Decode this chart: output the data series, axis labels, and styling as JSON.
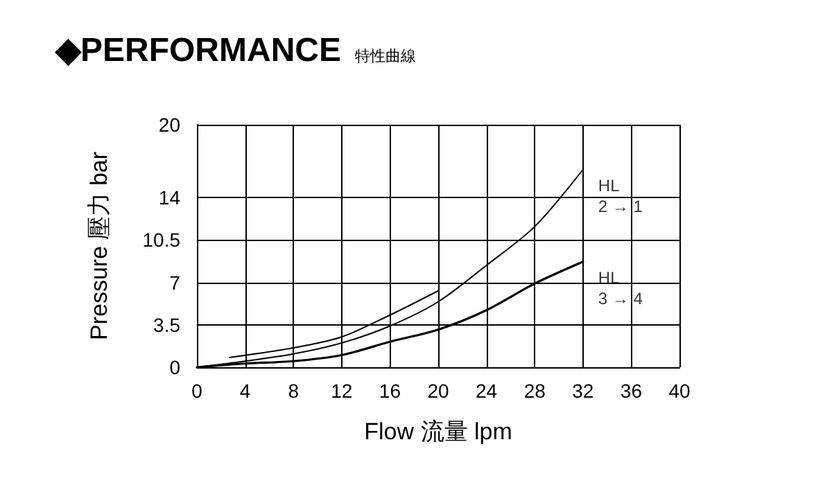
{
  "chart_data": {
    "type": "line",
    "title": "◆PERFORMANCE",
    "subtitle": "特性曲線",
    "xlabel": "Flow 流量 lpm",
    "ylabel": "Pressure 壓力 bar",
    "xlim": [
      0,
      40
    ],
    "xticks": [
      0,
      4,
      8,
      12,
      16,
      20,
      24,
      28,
      32,
      36,
      40
    ],
    "ylim": [
      0,
      20
    ],
    "yticks": [
      0,
      3.5,
      7,
      10.5,
      14,
      20
    ],
    "grid": true,
    "marker": "none",
    "line_style": "solid",
    "series": [
      {
        "color": "#000000",
        "x": [
          2.7,
          8,
          12,
          16,
          20
        ],
        "values": [
          0.8,
          1.6,
          2.5,
          4.3,
          6.3
        ]
      },
      {
        "color": "#000000",
        "x": [
          0,
          4,
          8,
          12,
          16,
          20,
          24,
          28,
          32
        ],
        "values": [
          0,
          0.5,
          1.1,
          2.0,
          3.4,
          5.4,
          8.4,
          11.6,
          16.3
        ]
      },
      {
        "color": "#000000",
        "x": [
          0,
          4,
          8,
          12,
          16,
          20,
          24,
          28,
          32
        ],
        "values": [
          0,
          0.3,
          0.5,
          1.0,
          2.1,
          3.1,
          4.7,
          6.9,
          8.7
        ]
      }
    ],
    "annotations": [
      {
        "text": "HL\n2 → 1",
        "x": 32,
        "y": 16.3
      },
      {
        "text": "HL\n3 → 4",
        "x": 32,
        "y": 8.7
      }
    ]
  }
}
